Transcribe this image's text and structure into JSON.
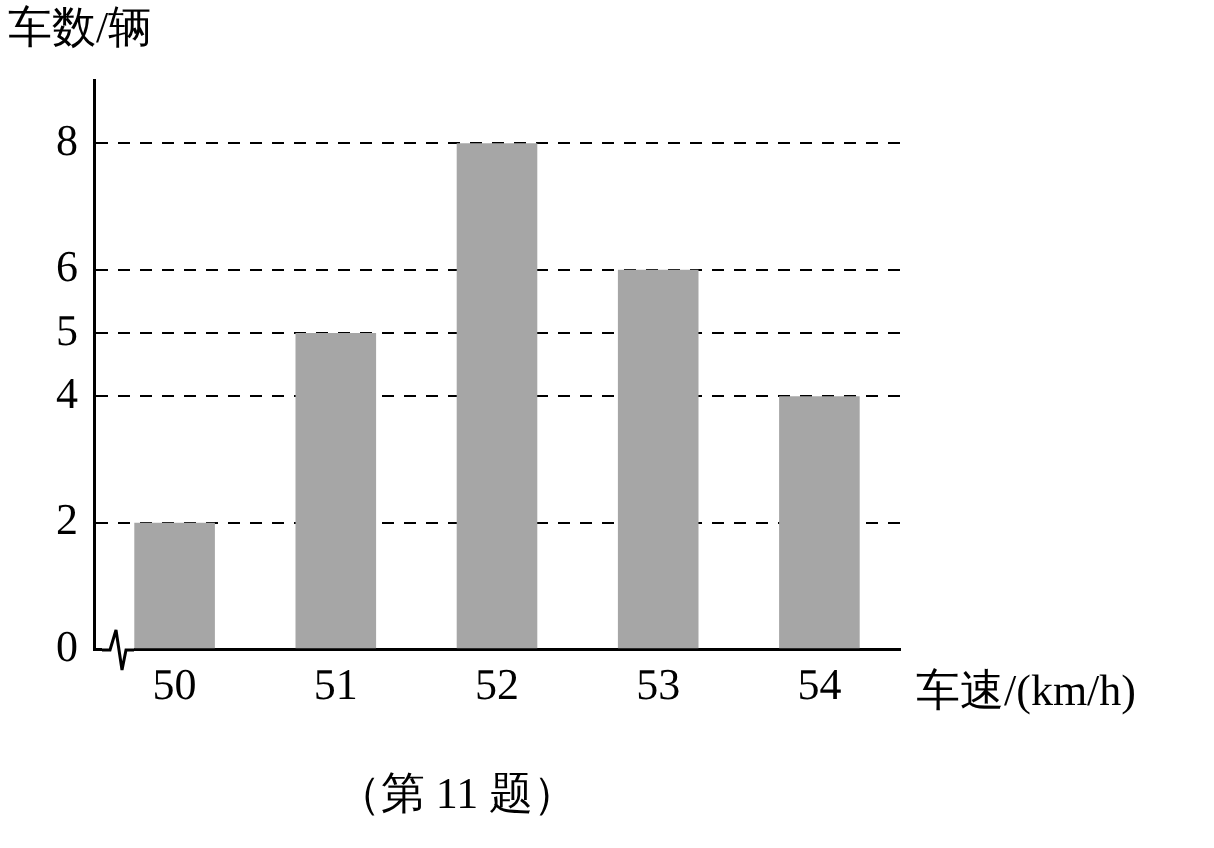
{
  "chart_data": {
    "type": "bar",
    "categories": [
      "50",
      "51",
      "52",
      "53",
      "54"
    ],
    "values": [
      2,
      5,
      8,
      6,
      4
    ],
    "color": "#a6a6a6",
    "ylim": [
      0,
      9
    ],
    "yticks": [
      0,
      2,
      4,
      5,
      6,
      8
    ],
    "grid": "y",
    "ylabel": "车数/辆",
    "xlabel": "车速/(km/h)",
    "annotations": [
      "（第 11 题）"
    ]
  }
}
